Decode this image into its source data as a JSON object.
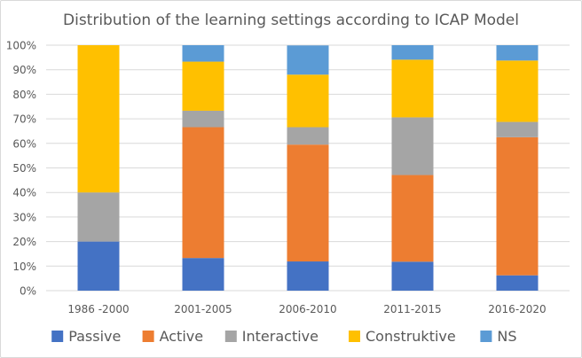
{
  "chart_data": {
    "type": "bar",
    "stacked": "percent",
    "title": "Distribution of the learning settings according to ICAP Model",
    "xlabel": "",
    "ylabel": "",
    "ylim": [
      0,
      100
    ],
    "yticks": [
      "0%",
      "10%",
      "20%",
      "30%",
      "40%",
      "50%",
      "60%",
      "70%",
      "80%",
      "90%",
      "100%"
    ],
    "grid": true,
    "legend_position": "bottom",
    "categories": [
      "1986 -2000",
      "2001-2005",
      "2006-2010",
      "2011-2015",
      "2016-2020"
    ],
    "series": [
      {
        "name": "Passive",
        "color": "#4472C4",
        "values": [
          20,
          13.3,
          11.9,
          11.8,
          6.25
        ]
      },
      {
        "name": "Active",
        "color": "#ED7D31",
        "values": [
          0,
          53.3,
          47.6,
          35.3,
          56.25
        ]
      },
      {
        "name": "Interactive",
        "color": "#A5A5A5",
        "values": [
          20,
          6.7,
          7.1,
          23.5,
          6.25
        ]
      },
      {
        "name": "Construktive",
        "color": "#FFC000",
        "values": [
          60,
          20,
          21.4,
          23.5,
          25
        ]
      },
      {
        "name": "NS",
        "color": "#5B9BD5",
        "values": [
          0,
          6.7,
          11.9,
          5.9,
          6.25
        ]
      }
    ]
  }
}
